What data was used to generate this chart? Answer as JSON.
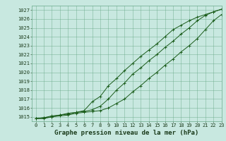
{
  "title": "Graphe pression niveau de la mer (hPa)",
  "background_color": "#c8e8e0",
  "plot_bg_color": "#c8e8e0",
  "grid_color": "#6aaa8a",
  "line_color": "#1a5c1a",
  "xlim": [
    -0.5,
    23
  ],
  "ylim": [
    1014.5,
    1027.5
  ],
  "xticks": [
    0,
    1,
    2,
    3,
    4,
    5,
    6,
    7,
    8,
    9,
    10,
    11,
    12,
    13,
    14,
    15,
    16,
    17,
    18,
    19,
    20,
    21,
    22,
    23
  ],
  "yticks": [
    1015,
    1016,
    1017,
    1018,
    1019,
    1020,
    1021,
    1022,
    1023,
    1024,
    1025,
    1026,
    1027
  ],
  "series1": [
    1014.8,
    1014.8,
    1015.0,
    1015.1,
    1015.2,
    1015.4,
    1015.5,
    1015.6,
    1015.7,
    1016.0,
    1016.5,
    1017.0,
    1017.8,
    1018.5,
    1019.3,
    1020.0,
    1020.8,
    1021.5,
    1022.3,
    1023.0,
    1023.8,
    1024.8,
    1025.8,
    1026.5
  ],
  "series2": [
    1014.8,
    1014.9,
    1015.0,
    1015.2,
    1015.3,
    1015.5,
    1015.6,
    1015.8,
    1016.2,
    1017.0,
    1018.0,
    1018.8,
    1019.8,
    1020.5,
    1021.3,
    1022.0,
    1022.8,
    1023.5,
    1024.3,
    1025.0,
    1025.8,
    1026.4,
    1026.8,
    1027.1
  ],
  "series3": [
    1014.8,
    1014.9,
    1015.1,
    1015.2,
    1015.4,
    1015.5,
    1015.7,
    1016.7,
    1017.3,
    1018.5,
    1019.3,
    1020.2,
    1021.0,
    1021.8,
    1022.5,
    1023.2,
    1024.0,
    1024.8,
    1025.3,
    1025.8,
    1026.2,
    1026.5,
    1026.8,
    1027.1
  ],
  "title_fontsize": 6.5,
  "tick_fontsize": 5.0,
  "title_color": "#1a3a1a",
  "tick_color": "#1a3a1a",
  "figwidth": 3.2,
  "figheight": 2.0,
  "dpi": 100
}
